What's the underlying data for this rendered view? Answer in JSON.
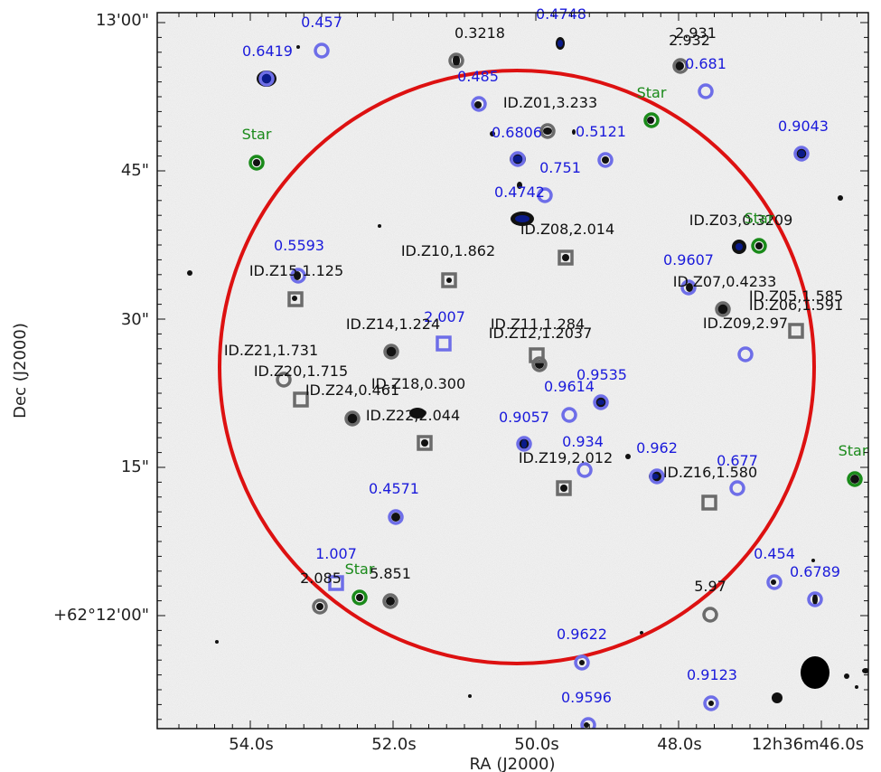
{
  "axes": {
    "xlabel": "RA (J2000)",
    "ylabel": "Dec (J2000)",
    "x_ticks": [
      "54.0s",
      "52.0s",
      "50.0s",
      "48.0s",
      "12h36m46.0s"
    ],
    "y_ticks": [
      "13'00\"",
      "45\"",
      "30\"",
      "15\"",
      "+62°12'00\""
    ]
  },
  "colors": {
    "photometric": "#1a1adb",
    "spectroscopic": "#111111",
    "star": "#1a8a1a",
    "circle": "#dd1111",
    "marker_blue": "#6e6ee8",
    "marker_gray": "#6b6b6b"
  },
  "labels": [
    {
      "text": "0.457",
      "color": "photometric"
    },
    {
      "text": "0.4748",
      "color": "photometric"
    },
    {
      "text": "0.3218",
      "color": "spectroscopic"
    },
    {
      "text": "2.931",
      "color": "spectroscopic"
    },
    {
      "text": "2.932",
      "color": "spectroscopic"
    },
    {
      "text": "0.6419",
      "color": "photometric"
    },
    {
      "text": "0.681",
      "color": "photometric"
    },
    {
      "text": "0.485",
      "color": "photometric"
    },
    {
      "text": "ID.Z01,3.233",
      "color": "spectroscopic"
    },
    {
      "text": "Star",
      "color": "star"
    },
    {
      "text": "Star",
      "color": "star"
    },
    {
      "text": "0.9043",
      "color": "photometric"
    },
    {
      "text": "0.6806",
      "color": "photometric"
    },
    {
      "text": "0.5121",
      "color": "photometric"
    },
    {
      "text": "0.751",
      "color": "photometric"
    },
    {
      "text": "0.4742",
      "color": "photometric"
    },
    {
      "text": "ID.Z03,0.3209",
      "color": "spectroscopic"
    },
    {
      "text": "Star",
      "color": "star"
    },
    {
      "text": "ID.Z08,2.014",
      "color": "spectroscopic"
    },
    {
      "text": "0.5593",
      "color": "photometric"
    },
    {
      "text": "ID.Z10,1.862",
      "color": "spectroscopic"
    },
    {
      "text": "0.9607",
      "color": "photometric"
    },
    {
      "text": "ID.Z15,1.125",
      "color": "spectroscopic"
    },
    {
      "text": "ID.Z07,0.4233",
      "color": "spectroscopic"
    },
    {
      "text": "ID.Z05,1.585",
      "color": "spectroscopic"
    },
    {
      "text": "ID.Z06,1.591",
      "color": "spectroscopic"
    },
    {
      "text": "2.007",
      "color": "photometric"
    },
    {
      "text": "ID.Z14,1.224",
      "color": "spectroscopic"
    },
    {
      "text": "ID.Z11,1.284",
      "color": "spectroscopic"
    },
    {
      "text": "ID.Z12,1.2037",
      "color": "spectroscopic"
    },
    {
      "text": "ID.Z09,2.97",
      "color": "spectroscopic"
    },
    {
      "text": "ID.Z21,1.731",
      "color": "spectroscopic"
    },
    {
      "text": "ID.Z20,1.715",
      "color": "spectroscopic"
    },
    {
      "text": "ID.Z18,0.300",
      "color": "spectroscopic"
    },
    {
      "text": "0.9535",
      "color": "photometric"
    },
    {
      "text": "ID.Z24,0.461",
      "color": "spectroscopic"
    },
    {
      "text": "0.9614",
      "color": "photometric"
    },
    {
      "text": "ID.Z22,2.044",
      "color": "spectroscopic"
    },
    {
      "text": "0.9057",
      "color": "photometric"
    },
    {
      "text": "0.934",
      "color": "photometric"
    },
    {
      "text": "0.962",
      "color": "photometric"
    },
    {
      "text": "ID.Z19,2.012",
      "color": "spectroscopic"
    },
    {
      "text": "0.677",
      "color": "photometric"
    },
    {
      "text": "ID.Z16,1.580",
      "color": "spectroscopic"
    },
    {
      "text": "Star",
      "color": "star"
    },
    {
      "text": "0.4571",
      "color": "photometric"
    },
    {
      "text": "1.007",
      "color": "photometric"
    },
    {
      "text": "Star",
      "color": "star"
    },
    {
      "text": "2.085",
      "color": "spectroscopic"
    },
    {
      "text": "5.851",
      "color": "spectroscopic"
    },
    {
      "text": "0.454",
      "color": "photometric"
    },
    {
      "text": "0.6789",
      "color": "photometric"
    },
    {
      "text": "5.97",
      "color": "spectroscopic"
    },
    {
      "text": "0.9622",
      "color": "photometric"
    },
    {
      "text": "0.9123",
      "color": "photometric"
    },
    {
      "text": "0.9596",
      "color": "photometric"
    }
  ],
  "markers": [
    {
      "kind": "circle",
      "color": "marker_blue"
    },
    {
      "kind": "circle",
      "color": "marker_blue"
    },
    {
      "kind": "circle",
      "color": "marker_gray"
    },
    {
      "kind": "circle",
      "color": "marker_gray"
    },
    {
      "kind": "circle",
      "color": "marker_blue"
    },
    {
      "kind": "circle",
      "color": "marker_blue"
    },
    {
      "kind": "circle",
      "color": "marker_gray"
    },
    {
      "kind": "circle",
      "color": "star"
    },
    {
      "kind": "circle",
      "color": "star"
    },
    {
      "kind": "circle",
      "color": "marker_blue"
    },
    {
      "kind": "circle",
      "color": "marker_blue"
    },
    {
      "kind": "circle",
      "color": "marker_blue"
    },
    {
      "kind": "circle",
      "color": "marker_blue"
    },
    {
      "kind": "circle",
      "color": "marker_blue"
    },
    {
      "kind": "circle",
      "color": "star"
    },
    {
      "kind": "circle",
      "color": "marker_blue"
    },
    {
      "kind": "circle",
      "color": "marker_blue"
    },
    {
      "kind": "circle",
      "color": "marker_gray"
    },
    {
      "kind": "circle",
      "color": "marker_gray"
    },
    {
      "kind": "circle",
      "color": "marker_gray"
    },
    {
      "kind": "circle",
      "color": "marker_gray"
    },
    {
      "kind": "circle",
      "color": "marker_gray"
    },
    {
      "kind": "circle",
      "color": "marker_blue"
    },
    {
      "kind": "circle",
      "color": "marker_blue"
    },
    {
      "kind": "circle",
      "color": "marker_blue"
    },
    {
      "kind": "circle",
      "color": "marker_blue"
    },
    {
      "kind": "circle",
      "color": "marker_blue"
    },
    {
      "kind": "circle",
      "color": "marker_blue"
    },
    {
      "kind": "circle",
      "color": "star"
    },
    {
      "kind": "circle",
      "color": "marker_blue"
    },
    {
      "kind": "circle",
      "color": "star"
    },
    {
      "kind": "circle",
      "color": "marker_gray"
    },
    {
      "kind": "circle",
      "color": "marker_gray"
    },
    {
      "kind": "circle",
      "color": "marker_blue"
    },
    {
      "kind": "circle",
      "color": "marker_blue"
    },
    {
      "kind": "circle",
      "color": "marker_gray"
    },
    {
      "kind": "circle",
      "color": "marker_blue"
    },
    {
      "kind": "circle",
      "color": "marker_blue"
    },
    {
      "kind": "circle",
      "color": "marker_blue"
    },
    {
      "kind": "square",
      "color": "marker_gray"
    },
    {
      "kind": "square",
      "color": "marker_gray"
    },
    {
      "kind": "square",
      "color": "marker_gray"
    },
    {
      "kind": "square",
      "color": "marker_blue"
    },
    {
      "kind": "square",
      "color": "marker_gray"
    },
    {
      "kind": "square",
      "color": "marker_gray"
    },
    {
      "kind": "square",
      "color": "marker_gray"
    },
    {
      "kind": "square",
      "color": "marker_gray"
    },
    {
      "kind": "square",
      "color": "marker_gray"
    },
    {
      "kind": "square",
      "color": "marker_gray"
    },
    {
      "kind": "square",
      "color": "marker_blue"
    }
  ]
}
